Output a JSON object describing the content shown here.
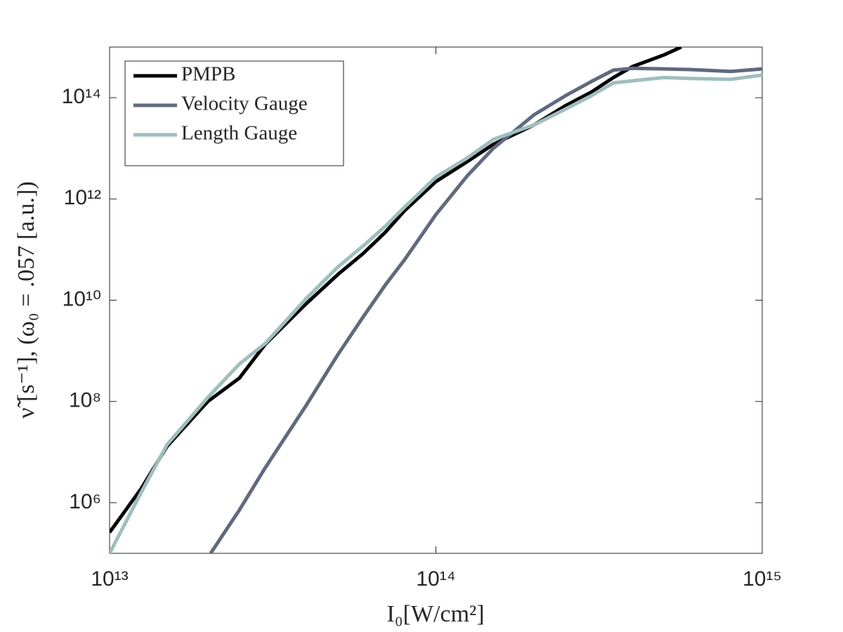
{
  "chart_data": {
    "type": "line",
    "xlabel": "I₀[W/cm²]",
    "ylabel": "ν̃ [s⁻¹], (ω₀ = .057 [a.u.])",
    "xscale": "log",
    "yscale": "log",
    "xlim": [
      10000000000000.0,
      1000000000000000.0
    ],
    "ylim": [
      100000.0,
      1000000000000000.0
    ],
    "xticks": [
      {
        "value": 10000000000000.0,
        "label": "10¹³"
      },
      {
        "value": 100000000000000.0,
        "label": "10¹⁴"
      },
      {
        "value": 1000000000000000.0,
        "label": "10¹⁵"
      }
    ],
    "yticks": [
      {
        "value": 1000000.0,
        "label": "10⁶"
      },
      {
        "value": 100000000.0,
        "label": "10⁸"
      },
      {
        "value": 10000000000.0,
        "label": "10¹⁰"
      },
      {
        "value": 1000000000000.0,
        "label": "10¹²"
      },
      {
        "value": 100000000000000.0,
        "label": "10¹⁴"
      }
    ],
    "legend": "upper left",
    "series": [
      {
        "name": "PMPB",
        "color": "#000000",
        "x": [
          10000000000000.0,
          12500000000000.0,
          15000000000000.0,
          20000000000000.0,
          25000000000000.0,
          30000000000000.0,
          40000000000000.0,
          50000000000000.0,
          60000000000000.0,
          70000000000000.0,
          80000000000000.0,
          100000000000000.0,
          125000000000000.0,
          150000000000000.0,
          200000000000000.0,
          250000000000000.0,
          300000000000000.0,
          350000000000000.0,
          400000000000000.0,
          500000000000000.0,
          565000000000000.0
        ],
        "values": [
          260000.0,
          1900000.0,
          13000000.0,
          100000000.0,
          290000000.0,
          1350000000.0,
          8500000000.0,
          32000000000.0,
          85000000000.0,
          220000000000.0,
          580000000000.0,
          2200000000000.0,
          5500000000000.0,
          12000000000000.0,
          29000000000000.0,
          70000000000000.0,
          130000000000000.0,
          250000000000000.0,
          410000000000000.0,
          700000000000000.0,
          1000000000000000.0
        ]
      },
      {
        "name": "Velocity Gauge",
        "color": "#5f6980",
        "x": [
          20400000000000.0,
          25000000000000.0,
          30000000000000.0,
          40000000000000.0,
          50000000000000.0,
          60000000000000.0,
          70000000000000.0,
          80000000000000.0,
          100000000000000.0,
          125000000000000.0,
          150000000000000.0,
          200000000000000.0,
          250000000000000.0,
          300000000000000.0,
          350000000000000.0,
          400000000000000.0,
          500000000000000.0,
          600000000000000.0,
          800000000000000.0,
          1000000000000000.0
        ],
        "values": [
          100000.0,
          720000.0,
          4900000.0,
          83000000.0,
          830000000.0,
          4800000000.0,
          20000000000.0,
          62000000000.0,
          490000000000.0,
          2900000000000.0,
          10000000000000.0,
          46000000000000.0,
          110000000000000.0,
          210000000000000.0,
          350000000000000.0,
          380000000000000.0,
          370000000000000.0,
          360000000000000.0,
          330000000000000.0,
          370000000000000.0
        ]
      },
      {
        "name": "Length Gauge",
        "color": "#9dbfbd",
        "x": [
          10000000000000.0,
          12500000000000.0,
          15000000000000.0,
          20000000000000.0,
          25000000000000.0,
          30000000000000.0,
          40000000000000.0,
          50000000000000.0,
          60000000000000.0,
          70000000000000.0,
          80000000000000.0,
          100000000000000.0,
          125000000000000.0,
          150000000000000.0,
          200000000000000.0,
          250000000000000.0,
          300000000000000.0,
          350000000000000.0,
          400000000000000.0,
          500000000000000.0,
          600000000000000.0,
          800000000000000.0,
          1000000000000000.0
        ],
        "values": [
          100000.0,
          1600000.0,
          14000000.0,
          120000000.0,
          550000000.0,
          1400000000.0,
          10700000000.0,
          45000000000.0,
          120000000000.0,
          290000000000.0,
          680000000000.0,
          2700000000000.0,
          6500000000000.0,
          15000000000000.0,
          29000000000000.0,
          60000000000000.0,
          110000000000000.0,
          196000000000000.0,
          215000000000000.0,
          250000000000000.0,
          240000000000000.0,
          230000000000000.0,
          280000000000000.0
        ]
      }
    ]
  }
}
